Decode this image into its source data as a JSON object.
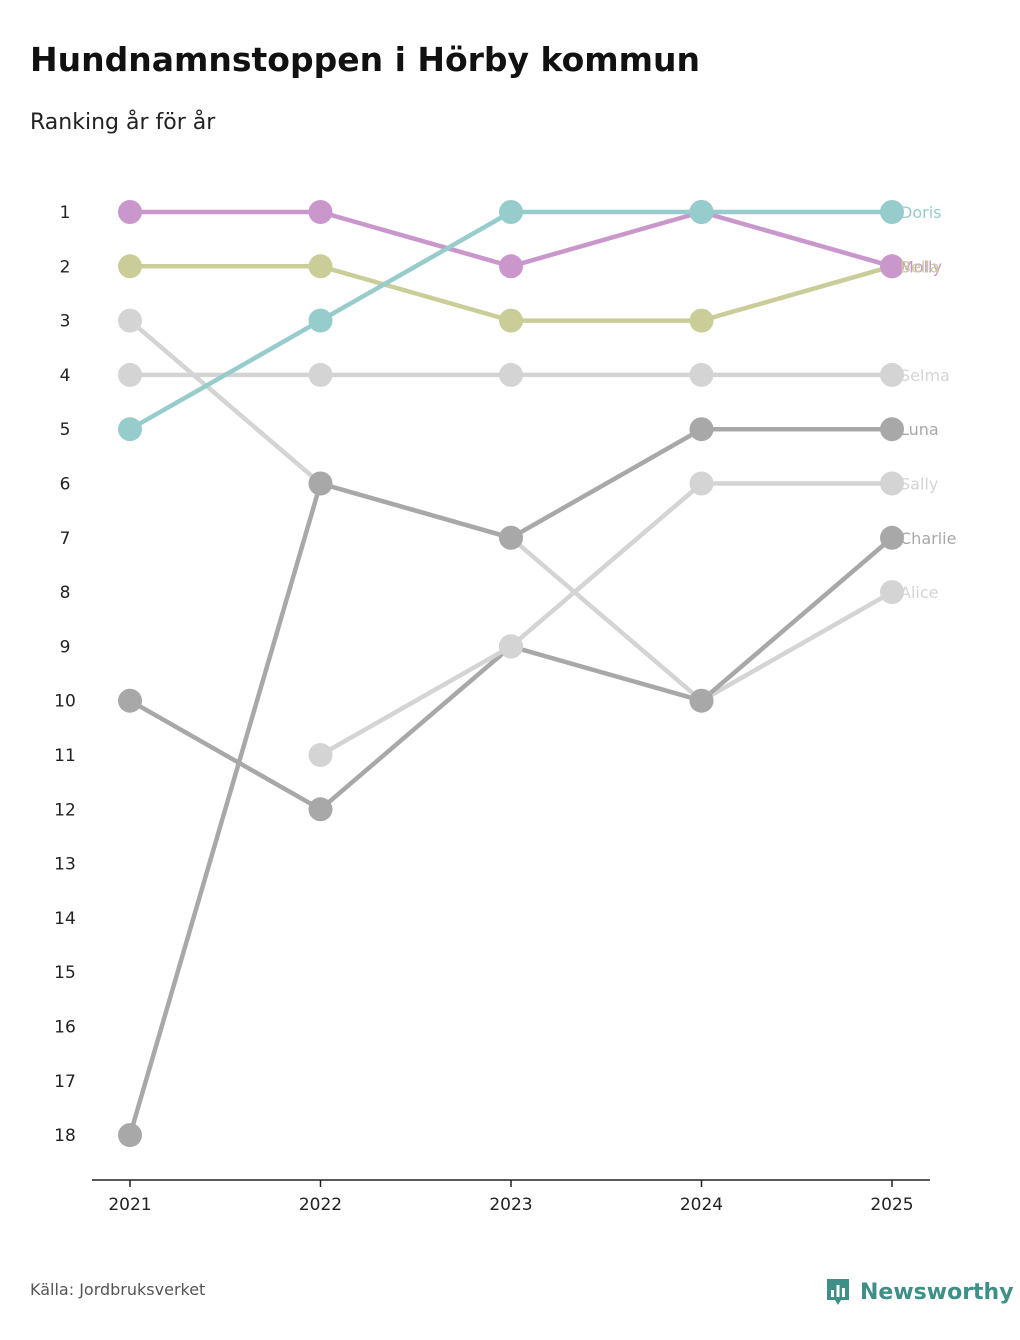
{
  "title": "Hundnamnstoppen i Hörby kommun",
  "subtitle": "Ranking år för år",
  "source": "Källa: Jordbruksverket",
  "brand": {
    "name": "Newsworthy",
    "icon": "newsworthy-logo-icon",
    "color": "#3e8f86"
  },
  "chart_data": {
    "type": "line",
    "x": [
      "2021",
      "2022",
      "2023",
      "2024",
      "2025"
    ],
    "y_ticks": [
      "1",
      "2",
      "3",
      "4",
      "5",
      "6",
      "7",
      "8",
      "9",
      "10",
      "11",
      "12",
      "13",
      "14",
      "15",
      "16",
      "17",
      "18"
    ],
    "y_range": [
      1,
      18
    ],
    "y_inverted": true,
    "grid": false,
    "series": [
      {
        "name": "Doris",
        "color": "#96cccb",
        "values": [
          5,
          3,
          1,
          1,
          1
        ]
      },
      {
        "name": "Molly",
        "color": "#c997cb",
        "values": [
          1,
          1,
          2,
          1,
          2
        ]
      },
      {
        "name": "Bella",
        "color": "#cbcd99",
        "values": [
          2,
          2,
          3,
          3,
          2
        ]
      },
      {
        "name": "Selma",
        "color": "#d4d4d4",
        "values": [
          4,
          4,
          4,
          4,
          4
        ]
      },
      {
        "name": "Luna",
        "color": "#a8a8a8",
        "values": [
          18,
          6,
          7,
          5,
          5
        ]
      },
      {
        "name": "Sally",
        "color": "#d4d4d4",
        "values": [
          null,
          11,
          9,
          6,
          6
        ]
      },
      {
        "name": "Charlie",
        "color": "#a8a8a8",
        "values": [
          10,
          12,
          9,
          10,
          7
        ]
      },
      {
        "name": "Alice",
        "color": "#d4d4d4",
        "values": [
          3,
          6,
          7,
          10,
          8
        ]
      }
    ]
  }
}
